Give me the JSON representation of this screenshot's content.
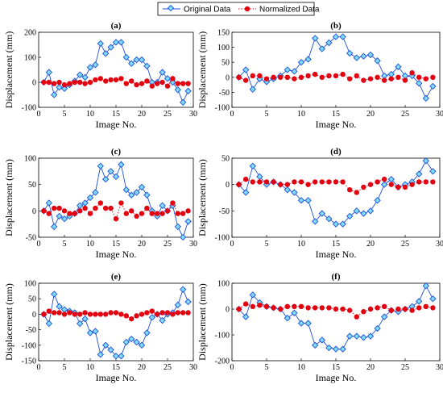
{
  "legend": {
    "original": "Original Data",
    "normalized": "Normalized Data"
  },
  "colors": {
    "original": "#1f4fd6",
    "original_fill": "#7fdcff",
    "normalized": "#e3000f"
  },
  "chart_data": [
    {
      "type": "line",
      "title": "(a)",
      "xlabel": "Image No.",
      "ylabel": "Displacement (mm)",
      "xlim": [
        0,
        30
      ],
      "ylim": [
        -100,
        200
      ],
      "xticks": [
        0,
        5,
        10,
        15,
        20,
        25,
        30
      ],
      "yticks": [
        -100,
        0,
        100,
        200
      ],
      "x": [
        1,
        2,
        3,
        4,
        5,
        6,
        7,
        8,
        9,
        10,
        11,
        12,
        13,
        14,
        15,
        16,
        17,
        18,
        19,
        20,
        21,
        22,
        23,
        24,
        25,
        26,
        27,
        28,
        29
      ],
      "series": [
        {
          "name": "Original Data",
          "values": [
            0,
            40,
            -50,
            -20,
            -25,
            -10,
            5,
            30,
            20,
            60,
            70,
            155,
            115,
            140,
            160,
            160,
            100,
            75,
            90,
            90,
            65,
            0,
            0,
            40,
            15,
            0,
            -30,
            -80,
            -35
          ]
        },
        {
          "name": "Normalized Data",
          "values": [
            0,
            0,
            -5,
            0,
            -10,
            -5,
            0,
            0,
            -5,
            0,
            10,
            15,
            5,
            10,
            10,
            15,
            -5,
            5,
            -10,
            -5,
            5,
            -15,
            -5,
            0,
            -15,
            15,
            -5,
            -5,
            -5
          ]
        }
      ]
    },
    {
      "type": "line",
      "title": "(b)",
      "xlabel": "Image No.",
      "ylabel": "Displacement (mm)",
      "xlim": [
        0,
        30
      ],
      "ylim": [
        -100,
        150
      ],
      "xticks": [
        0,
        5,
        10,
        15,
        20,
        25,
        30
      ],
      "yticks": [
        -100,
        -50,
        0,
        50,
        100,
        150
      ],
      "x": [
        1,
        2,
        3,
        4,
        5,
        6,
        7,
        8,
        9,
        10,
        11,
        12,
        13,
        14,
        15,
        16,
        17,
        18,
        19,
        20,
        21,
        22,
        23,
        24,
        25,
        26,
        27,
        28,
        29
      ],
      "series": [
        {
          "name": "Original Data",
          "values": [
            0,
            25,
            -40,
            -5,
            -15,
            -5,
            5,
            25,
            20,
            50,
            60,
            130,
            95,
            115,
            135,
            135,
            80,
            65,
            70,
            75,
            55,
            5,
            10,
            35,
            5,
            5,
            -20,
            -70,
            -30
          ]
        },
        {
          "name": "Normalized Data",
          "values": [
            0,
            -10,
            5,
            5,
            -5,
            0,
            0,
            0,
            -5,
            0,
            5,
            10,
            0,
            5,
            5,
            10,
            -5,
            5,
            -10,
            -5,
            0,
            -10,
            -5,
            0,
            -10,
            15,
            0,
            -5,
            0
          ]
        }
      ]
    },
    {
      "type": "line",
      "title": "(c)",
      "xlabel": "Image No.",
      "ylabel": "Displacement (mm)",
      "xlim": [
        0,
        30
      ],
      "ylim": [
        -50,
        100
      ],
      "xticks": [
        0,
        5,
        10,
        15,
        20,
        25,
        30
      ],
      "yticks": [
        -50,
        0,
        50,
        100
      ],
      "x": [
        1,
        2,
        3,
        4,
        5,
        6,
        7,
        8,
        9,
        10,
        11,
        12,
        13,
        14,
        15,
        16,
        17,
        18,
        19,
        20,
        21,
        22,
        23,
        24,
        25,
        26,
        27,
        28,
        29
      ],
      "series": [
        {
          "name": "Original Data",
          "values": [
            0,
            15,
            -30,
            -10,
            -15,
            -10,
            -5,
            10,
            15,
            25,
            35,
            85,
            60,
            75,
            65,
            88,
            40,
            30,
            35,
            45,
            30,
            0,
            -10,
            10,
            0,
            10,
            -30,
            -50,
            -20
          ]
        },
        {
          "name": "Normalized Data",
          "values": [
            0,
            -5,
            5,
            5,
            0,
            -5,
            -5,
            0,
            5,
            -5,
            5,
            15,
            5,
            5,
            -15,
            15,
            -5,
            0,
            -10,
            -5,
            5,
            -5,
            -5,
            -5,
            0,
            15,
            -5,
            -5,
            0
          ]
        }
      ]
    },
    {
      "type": "line",
      "title": "(d)",
      "xlabel": "Image No.",
      "ylabel": "Displacement (mm)",
      "xlim": [
        0,
        30
      ],
      "ylim": [
        -100,
        50
      ],
      "xticks": [
        0,
        5,
        10,
        15,
        20,
        25,
        30
      ],
      "yticks": [
        -100,
        -50,
        0,
        50
      ],
      "x": [
        1,
        2,
        3,
        4,
        5,
        6,
        7,
        8,
        9,
        10,
        11,
        12,
        13,
        14,
        15,
        16,
        17,
        18,
        19,
        20,
        21,
        22,
        23,
        24,
        25,
        26,
        27,
        28,
        29
      ],
      "series": [
        {
          "name": "Original Data",
          "values": [
            0,
            -15,
            35,
            15,
            0,
            5,
            0,
            -10,
            -15,
            -30,
            -30,
            -70,
            -55,
            -65,
            -75,
            -75,
            -60,
            -50,
            -55,
            -50,
            -30,
            0,
            10,
            -5,
            0,
            5,
            20,
            45,
            25
          ]
        },
        {
          "name": "Normalized Data",
          "values": [
            0,
            10,
            5,
            5,
            5,
            5,
            0,
            0,
            5,
            5,
            0,
            5,
            5,
            5,
            5,
            5,
            -10,
            -15,
            -5,
            0,
            5,
            10,
            0,
            -5,
            -5,
            0,
            5,
            5,
            5
          ]
        }
      ]
    },
    {
      "type": "line",
      "title": "(e)",
      "xlabel": "Image No.",
      "ylabel": "Displacement (mm)",
      "xlim": [
        0,
        30
      ],
      "ylim": [
        -150,
        100
      ],
      "xticks": [
        0,
        5,
        10,
        15,
        20,
        25,
        30
      ],
      "yticks": [
        -150,
        -100,
        -50,
        0,
        50,
        100
      ],
      "x": [
        1,
        2,
        3,
        4,
        5,
        6,
        7,
        8,
        9,
        10,
        11,
        12,
        13,
        14,
        15,
        16,
        17,
        18,
        19,
        20,
        21,
        22,
        23,
        24,
        25,
        26,
        27,
        28,
        29
      ],
      "series": [
        {
          "name": "Original Data",
          "values": [
            0,
            -30,
            65,
            25,
            15,
            10,
            5,
            -30,
            -15,
            -60,
            -55,
            -130,
            -100,
            -115,
            -135,
            -135,
            -90,
            -80,
            -90,
            -100,
            -60,
            -10,
            0,
            -20,
            0,
            5,
            30,
            80,
            40
          ]
        },
        {
          "name": "Normalized Data",
          "values": [
            0,
            10,
            5,
            5,
            0,
            5,
            0,
            0,
            5,
            0,
            0,
            0,
            0,
            5,
            5,
            0,
            -5,
            -15,
            -5,
            0,
            5,
            10,
            0,
            5,
            5,
            0,
            5,
            5,
            5
          ]
        }
      ]
    },
    {
      "type": "line",
      "title": "(f)",
      "xlabel": "Image No.",
      "ylabel": "Displacement (mm)",
      "xlim": [
        0,
        30
      ],
      "ylim": [
        -200,
        100
      ],
      "xticks": [
        0,
        5,
        10,
        15,
        20,
        25,
        30
      ],
      "yticks": [
        -200,
        -100,
        0,
        100
      ],
      "x": [
        1,
        2,
        3,
        4,
        5,
        6,
        7,
        8,
        9,
        10,
        11,
        12,
        13,
        14,
        15,
        16,
        17,
        18,
        19,
        20,
        21,
        22,
        23,
        24,
        25,
        26,
        27,
        28,
        29
      ],
      "series": [
        {
          "name": "Original Data",
          "values": [
            0,
            -30,
            55,
            25,
            10,
            5,
            0,
            -35,
            -15,
            -55,
            -55,
            -140,
            -120,
            -150,
            -155,
            -155,
            -105,
            -105,
            -110,
            -105,
            -75,
            -30,
            -5,
            -10,
            0,
            10,
            30,
            90,
            40
          ]
        },
        {
          "name": "Normalized Data",
          "values": [
            0,
            20,
            10,
            15,
            10,
            5,
            0,
            10,
            10,
            10,
            5,
            5,
            5,
            5,
            0,
            0,
            -5,
            -30,
            -10,
            0,
            5,
            10,
            -5,
            0,
            0,
            -5,
            5,
            10,
            5
          ]
        }
      ]
    }
  ]
}
